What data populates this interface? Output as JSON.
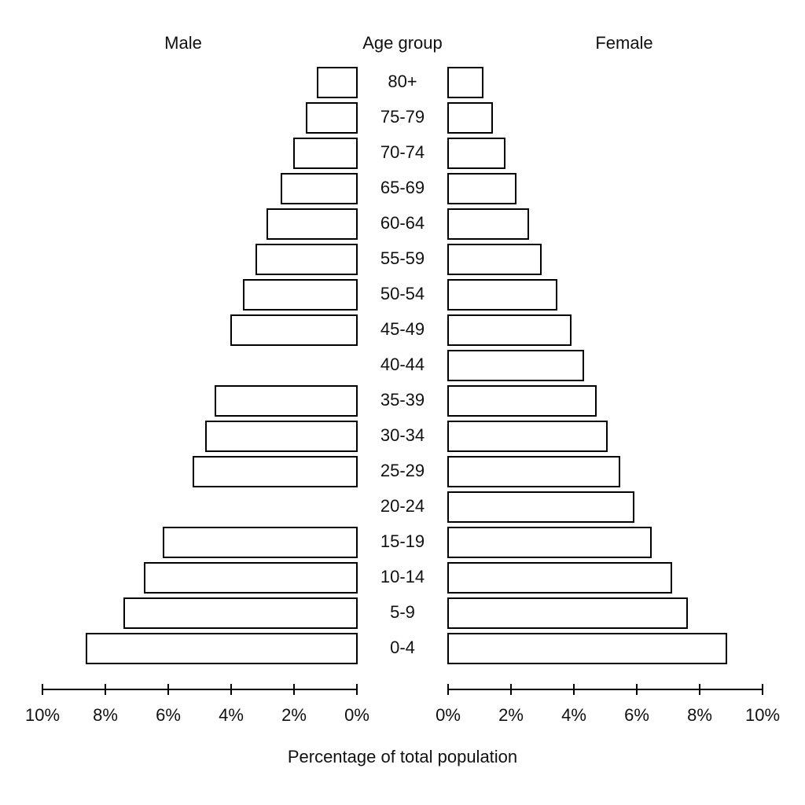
{
  "chart_data": {
    "type": "pyramid",
    "category_label": "Age group",
    "xlabel": "Percentage of total population",
    "categories": [
      "80+",
      "75-79",
      "70-74",
      "65-69",
      "60-64",
      "55-59",
      "50-54",
      "45-49",
      "40-44",
      "35-39",
      "30-34",
      "25-29",
      "20-24",
      "15-19",
      "10-14",
      "5-9",
      "0-4"
    ],
    "series": [
      {
        "name": "Male",
        "color": "#ffffff",
        "values": [
          1.25,
          1.6,
          2.0,
          2.4,
          2.85,
          3.2,
          3.6,
          4.0,
          null,
          4.5,
          4.8,
          5.2,
          null,
          6.15,
          6.75,
          7.4,
          8.6
        ]
      },
      {
        "name": "Female",
        "color": "#ffffff",
        "values": [
          1.1,
          1.4,
          1.8,
          2.15,
          2.55,
          2.95,
          3.45,
          3.9,
          4.3,
          4.7,
          5.05,
          5.45,
          5.9,
          6.45,
          7.1,
          7.6,
          8.85
        ]
      }
    ],
    "edgecolor": "#000000",
    "xlim": [
      0,
      10
    ],
    "xticks": [
      {
        "value": 0,
        "label": "0%"
      },
      {
        "value": 2,
        "label": "2%"
      },
      {
        "value": 4,
        "label": "4%"
      },
      {
        "value": 6,
        "label": "6%"
      },
      {
        "value": 8,
        "label": "8%"
      },
      {
        "value": 10,
        "label": "10%"
      }
    ],
    "grid": false
  }
}
